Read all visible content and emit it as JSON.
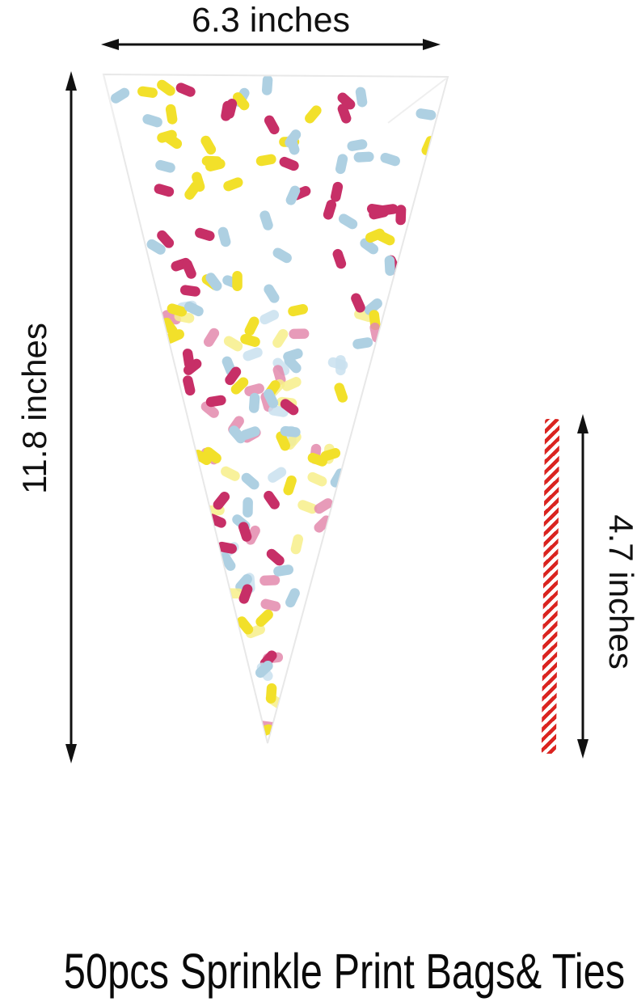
{
  "product_diagram": {
    "dimensions": {
      "width_label": "6.3 inches",
      "height_label": "11.8 inches",
      "tie_label": "4.7 inches"
    },
    "caption": "50pcs Sprinkle Print Bags& Ties",
    "colors": {
      "annotation": "#111111",
      "bag_fill": "#ffffff",
      "bag_edge": "#e8e8e8",
      "bag_crease": "#efefef",
      "sprinkle_yellow": "#f2e02a",
      "sprinkle_magenta": "#c72f67",
      "sprinkle_blue": "#aed0e2",
      "sprinkle_pink_back": "#e389ad",
      "sprinkle_blue_back": "#c9e0ee",
      "sprinkle_yellow_back": "#f7ee8a",
      "tie_red": "#da2420",
      "tie_white": "#ffffff"
    }
  }
}
